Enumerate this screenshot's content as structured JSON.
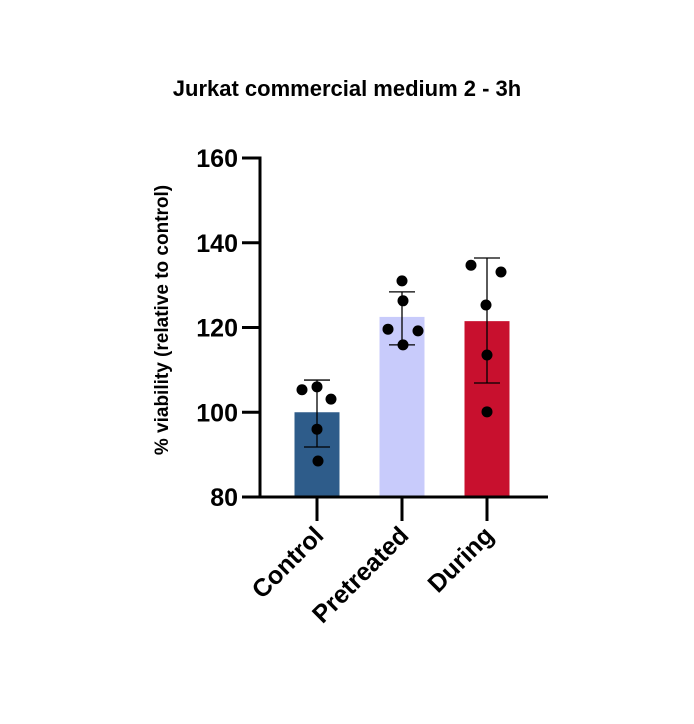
{
  "chart_data": {
    "type": "bar",
    "title": "Jurkat commercial medium 2 - 3h",
    "xlabel": "",
    "ylabel": "% viability (relative to control)",
    "ylim": [
      80,
      160
    ],
    "yticks": [
      80,
      100,
      120,
      140,
      160
    ],
    "grid": false,
    "legend": null,
    "categories": [
      "Control",
      "Pretreated",
      "During"
    ],
    "values": [
      100,
      122.5,
      121.5
    ],
    "error_bars": {
      "type": "SD",
      "upper": [
        107.6,
        128.4,
        136.4
      ],
      "lower": [
        91.8,
        115.9,
        106.9
      ]
    },
    "points": [
      [
        105.3,
        106.0,
        103.1,
        96.0,
        88.5
      ],
      [
        131.0,
        126.3,
        119.6,
        119.2,
        115.9
      ],
      [
        134.7,
        133.1,
        125.3,
        113.5,
        100.1
      ]
    ],
    "colors": [
      "#2E5C8A",
      "#C8CBFB",
      "#C8102E"
    ]
  }
}
